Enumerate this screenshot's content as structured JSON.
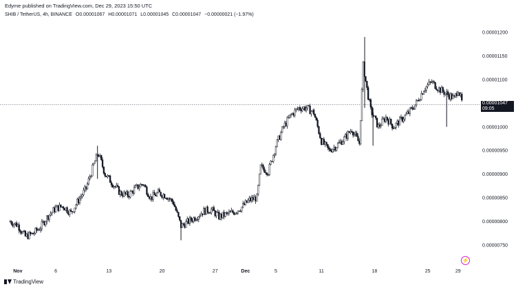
{
  "header": {
    "published": "Edyme published on TradingView.com, Dec 29, 2023 15:50 UTC"
  },
  "legend": {
    "symbol": "SHIB / TetherUS, 4h, BINANCE",
    "open": "O0.00001067",
    "high": "H0.00001071",
    "low": "L0.00001045",
    "close": "C0.00001047",
    "change": "−0.00000021 (−1.97%)"
  },
  "price_tag": {
    "price": "0.00001047",
    "countdown": "09:05"
  },
  "brand": {
    "name": "TradingView"
  },
  "icons": {
    "brand": "tradingview-logo-icon",
    "bolt": "lightning-bolt-icon"
  },
  "colors": {
    "candle_up": "#ffffff",
    "candle_down": "#131722",
    "wick": "#131722",
    "price_line": "#787b86"
  },
  "chart_data": {
    "type": "candlestick",
    "symbol": "SHIB / TetherUS",
    "interval": "4h",
    "exchange": "BINANCE",
    "ylim": [
      7.1e-06,
      1.22e-05
    ],
    "yticks": [
      "0.00001200",
      "0.00001150",
      "0.00001100",
      "0.00001050",
      "0.00001000",
      "0.00000950",
      "0.00000900",
      "0.00000850",
      "0.00000800",
      "0.00000750"
    ],
    "ytick_values": [
      1.2e-05,
      1.15e-05,
      1.1e-05,
      1.05e-05,
      1e-05,
      9.5e-06,
      9e-06,
      8.5e-06,
      8e-06,
      7.5e-06
    ],
    "xticks": [
      {
        "label": "Nov",
        "bold": true,
        "day": 1
      },
      {
        "label": "6",
        "bold": false,
        "day": 6
      },
      {
        "label": "13",
        "bold": false,
        "day": 13
      },
      {
        "label": "20",
        "bold": false,
        "day": 20
      },
      {
        "label": "27",
        "bold": false,
        "day": 27
      },
      {
        "label": "Dec",
        "bold": true,
        "day": 31
      },
      {
        "label": "5",
        "bold": false,
        "day": 35
      },
      {
        "label": "11",
        "bold": false,
        "day": 41
      },
      {
        "label": "18",
        "bold": false,
        "day": 48
      },
      {
        "label": "25",
        "bold": false,
        "day": 55
      },
      {
        "label": "29",
        "bold": false,
        "day": 59
      }
    ],
    "current_price": 1.047e-05,
    "close_path": [
      [
        0.0,
        8e-06
      ],
      [
        1.0,
        7.92e-06
      ],
      [
        2.0,
        7.68e-06
      ],
      [
        3.0,
        7.74e-06
      ],
      [
        4.0,
        7.88e-06
      ],
      [
        5.0,
        8.12e-06
      ],
      [
        6.0,
        8.28e-06
      ],
      [
        7.0,
        8.32e-06
      ],
      [
        8.0,
        8.18e-06
      ],
      [
        9.0,
        8.45e-06
      ],
      [
        10.0,
        8.7e-06
      ],
      [
        11.0,
        9.2e-06
      ],
      [
        11.6,
        9.45e-06
      ],
      [
        12.5,
        9e-06
      ],
      [
        13.5,
        8.8e-06
      ],
      [
        14.5,
        8.6e-06
      ],
      [
        15.5,
        8.55e-06
      ],
      [
        16.5,
        8.7e-06
      ],
      [
        17.5,
        8.8e-06
      ],
      [
        18.5,
        8.5e-06
      ],
      [
        19.5,
        8.6e-06
      ],
      [
        20.5,
        8.55e-06
      ],
      [
        21.5,
        8.4e-06
      ],
      [
        22.5,
        7.9e-06
      ],
      [
        23.5,
        8e-06
      ],
      [
        24.5,
        8.1e-06
      ],
      [
        25.5,
        8.22e-06
      ],
      [
        26.5,
        8.25e-06
      ],
      [
        27.5,
        8.1e-06
      ],
      [
        28.5,
        8.15e-06
      ],
      [
        29.5,
        8.2e-06
      ],
      [
        30.5,
        8.3e-06
      ],
      [
        31.5,
        8.45e-06
      ],
      [
        32.5,
        8.5e-06
      ],
      [
        33.0,
        9.15e-06
      ],
      [
        34.0,
        9.05e-06
      ],
      [
        35.0,
        9.6e-06
      ],
      [
        36.0,
        1e-05
      ],
      [
        37.0,
        1.025e-05
      ],
      [
        38.0,
        1.04e-05
      ],
      [
        39.0,
        1.04e-05
      ],
      [
        40.0,
        1.03e-05
      ],
      [
        41.0,
        9.7e-06
      ],
      [
        42.0,
        9.5e-06
      ],
      [
        43.0,
        9.6e-06
      ],
      [
        44.0,
        9.75e-06
      ],
      [
        45.0,
        9.95e-06
      ],
      [
        46.0,
        9.65e-06
      ],
      [
        46.5,
        1.13e-05
      ],
      [
        47.0,
        1.08e-05
      ],
      [
        47.5,
        1.035e-05
      ],
      [
        48.5,
        1e-05
      ],
      [
        49.5,
        1.02e-05
      ],
      [
        50.5,
        1e-05
      ],
      [
        51.5,
        1.015e-05
      ],
      [
        52.5,
        1.03e-05
      ],
      [
        53.5,
        1.05e-05
      ],
      [
        54.5,
        1.08e-05
      ],
      [
        55.5,
        1.095e-05
      ],
      [
        56.5,
        1.08e-05
      ],
      [
        57.5,
        1.07e-05
      ],
      [
        58.5,
        1.06e-05
      ],
      [
        59.0,
        1.08e-05
      ],
      [
        59.6,
        1.047e-05
      ]
    ],
    "spikes": [
      {
        "day": 46.7,
        "high": 1.19e-05,
        "low": 1.04e-05
      },
      {
        "day": 11.5,
        "high": 9.6e-06,
        "low": 8.9e-06
      },
      {
        "day": 22.5,
        "high": 8e-06,
        "low": 7.6e-06
      },
      {
        "day": 47.8,
        "high": 1.04e-05,
        "low": 9.6e-06
      },
      {
        "day": 57.5,
        "high": 1.07e-05,
        "low": 1e-05
      }
    ]
  }
}
